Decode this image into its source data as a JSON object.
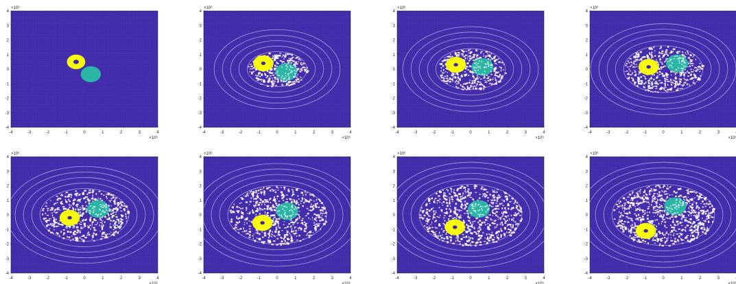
{
  "colors": {
    "background": "#ffffff",
    "grid_dots": "#3d26a8",
    "body_a": "#f9fb0e",
    "body_b": "#2ab5a5",
    "axis": "#262626"
  },
  "exponent_label": "×10⁶",
  "chart_data": [
    {
      "type": "scatter",
      "panel": 1,
      "xlim": [
        -4,
        4
      ],
      "ylim": [
        -4,
        4
      ],
      "x_ticks": [
        -4,
        -3,
        -2,
        -1,
        0,
        1,
        2,
        3,
        4
      ],
      "y_ticks": [
        -4,
        -3,
        -2,
        -1,
        0,
        1,
        2,
        3,
        4
      ],
      "series": [
        {
          "center": [
            -0.45,
            0.5
          ],
          "radius": 0.5,
          "hole": 0.15
        },
        {
          "center": [
            0.35,
            -0.35
          ],
          "radius": 0.55,
          "hole": 0
        }
      ]
    },
    {
      "type": "scatter",
      "panel": 2,
      "xlim": [
        -4,
        4
      ],
      "ylim": [
        -4,
        4
      ],
      "x_ticks": [
        -4,
        -3,
        -2,
        -1,
        0,
        1,
        2,
        3,
        4
      ],
      "y_ticks": [
        -4,
        -3,
        -2,
        -1,
        0,
        1,
        2,
        3,
        4
      ],
      "series": [
        {
          "center": [
            -0.75,
            0.4
          ],
          "radius": 0.55,
          "hole": 0.12
        },
        {
          "center": [
            0.5,
            -0.2
          ],
          "radius": 0.6,
          "hole": 0
        }
      ]
    },
    {
      "type": "scatter",
      "panel": 3,
      "xlim": [
        -4,
        4
      ],
      "ylim": [
        -4,
        4
      ],
      "x_ticks": [
        -4,
        -3,
        -2,
        -1,
        0,
        1,
        2,
        3,
        4
      ],
      "y_ticks": [
        -4,
        -3,
        -2,
        -1,
        0,
        1,
        2,
        3,
        4
      ],
      "series": [
        {
          "center": [
            -0.8,
            0.3
          ],
          "radius": 0.55,
          "hole": 0.12
        },
        {
          "center": [
            0.65,
            0.15
          ],
          "radius": 0.6,
          "hole": 0
        }
      ]
    },
    {
      "type": "scatter",
      "panel": 4,
      "xlim": [
        -4,
        4
      ],
      "ylim": [
        -4,
        4
      ],
      "x_ticks": [
        -4,
        -3,
        -2,
        -1,
        0,
        1,
        2,
        3,
        4
      ],
      "y_ticks": [
        -4,
        -3,
        -2,
        -1,
        0,
        1,
        2,
        3,
        4
      ],
      "series": [
        {
          "center": [
            -0.8,
            0.15
          ],
          "radius": 0.55,
          "hole": 0.12
        },
        {
          "center": [
            0.75,
            0.4
          ],
          "radius": 0.6,
          "hole": 0
        }
      ]
    },
    {
      "type": "scatter",
      "panel": 5,
      "xlim": [
        -4,
        4
      ],
      "ylim": [
        -4,
        4
      ],
      "x_ticks": [
        -4,
        -3,
        -2,
        -1,
        0,
        1,
        2,
        3,
        4
      ],
      "y_ticks": [
        -4,
        -3,
        -2,
        -1,
        0,
        1,
        2,
        3,
        4
      ],
      "series": [
        {
          "center": [
            -0.8,
            -0.2
          ],
          "radius": 0.55,
          "hole": 0.12
        },
        {
          "center": [
            0.75,
            0.4
          ],
          "radius": 0.6,
          "hole": 0
        }
      ]
    },
    {
      "type": "scatter",
      "panel": 6,
      "xlim": [
        -4,
        4
      ],
      "ylim": [
        -4,
        4
      ],
      "x_ticks": [
        -4,
        -3,
        -2,
        -1,
        0,
        1,
        2,
        3,
        4
      ],
      "y_ticks": [
        -4,
        -3,
        -2,
        -1,
        0,
        1,
        2,
        3,
        4
      ],
      "series": [
        {
          "center": [
            -0.8,
            -0.55
          ],
          "radius": 0.55,
          "hole": 0.12
        },
        {
          "center": [
            0.55,
            0.25
          ],
          "radius": 0.6,
          "hole": 0
        }
      ]
    },
    {
      "type": "scatter",
      "panel": 7,
      "xlim": [
        -4,
        4
      ],
      "ylim": [
        -4,
        4
      ],
      "x_ticks": [
        -4,
        -3,
        -2,
        -1,
        0,
        1,
        2,
        3,
        4
      ],
      "y_ticks": [
        -4,
        -3,
        -2,
        -1,
        0,
        1,
        2,
        3,
        4
      ],
      "series": [
        {
          "center": [
            -0.85,
            -0.85
          ],
          "radius": 0.55,
          "hole": 0.12
        },
        {
          "center": [
            0.45,
            0.4
          ],
          "radius": 0.6,
          "hole": 0
        }
      ]
    },
    {
      "type": "scatter",
      "panel": 8,
      "xlim": [
        -4,
        4
      ],
      "ylim": [
        -4,
        4
      ],
      "x_ticks": [
        -4,
        -3,
        -2,
        -1,
        0,
        1,
        2,
        3,
        4
      ],
      "y_ticks": [
        -4,
        -3,
        -2,
        -1,
        0,
        1,
        2,
        3,
        4
      ],
      "series": [
        {
          "center": [
            -0.95,
            -1.1
          ],
          "radius": 0.55,
          "hole": 0.12
        },
        {
          "center": [
            0.65,
            0.6
          ],
          "radius": 0.6,
          "hole": 0
        }
      ]
    }
  ]
}
